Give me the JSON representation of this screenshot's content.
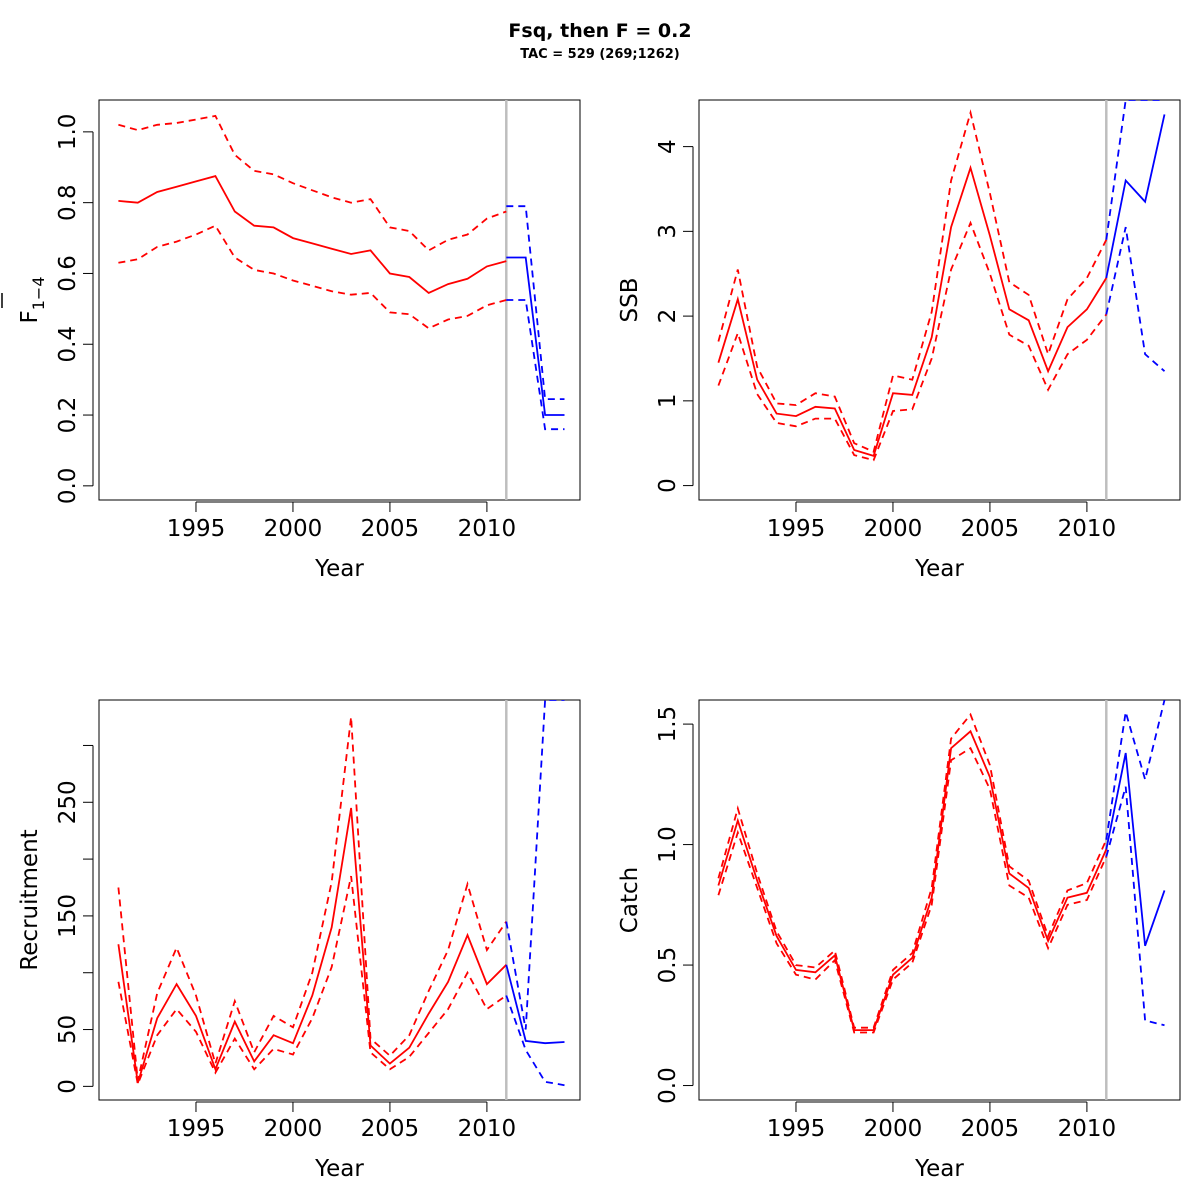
{
  "figure": {
    "title": "Fsq, then F = 0.2",
    "subtitle": "TAC = 529 (269;1262)"
  },
  "colors": {
    "historic": "#ff0000",
    "forecast": "#0000ff",
    "divider": "#bebebe",
    "axis": "#000000"
  },
  "chart_data": [
    {
      "id": "fbar",
      "type": "line",
      "xlabel": "Year",
      "ylabel": "F",
      "ylabel_subscript": "1−4",
      "ylabel_overbar": true,
      "xlim": [
        1990,
        2014.8
      ],
      "ylim": [
        -0.04,
        1.09
      ],
      "xticks": [
        1995,
        2000,
        2005,
        2010
      ],
      "yticks": [
        0.0,
        0.2,
        0.4,
        0.6,
        0.8,
        1.0
      ],
      "ytick_labels": [
        "0.0",
        "0.2",
        "0.4",
        "0.6",
        "0.8",
        "1.0"
      ],
      "divider_x": 2011,
      "historic": {
        "x": [
          1991,
          1992,
          1993,
          1994,
          1995,
          1996,
          1997,
          1998,
          1999,
          2000,
          2001,
          2002,
          2003,
          2004,
          2005,
          2006,
          2007,
          2008,
          2009,
          2010,
          2011
        ],
        "mid": [
          0.805,
          0.8,
          0.83,
          0.845,
          0.86,
          0.875,
          0.775,
          0.735,
          0.73,
          0.7,
          0.685,
          0.67,
          0.655,
          0.665,
          0.6,
          0.59,
          0.545,
          0.57,
          0.585,
          0.62,
          0.635
        ],
        "upper": [
          1.02,
          1.005,
          1.02,
          1.025,
          1.035,
          1.045,
          0.935,
          0.89,
          0.88,
          0.855,
          0.835,
          0.815,
          0.8,
          0.81,
          0.73,
          0.72,
          0.665,
          0.695,
          0.71,
          0.755,
          0.775
        ],
        "lower": [
          0.63,
          0.64,
          0.675,
          0.69,
          0.71,
          0.735,
          0.645,
          0.61,
          0.6,
          0.58,
          0.565,
          0.55,
          0.54,
          0.545,
          0.49,
          0.485,
          0.445,
          0.47,
          0.48,
          0.51,
          0.525
        ]
      },
      "forecast": {
        "x": [
          2011,
          2012,
          2013,
          2014
        ],
        "mid": [
          0.645,
          0.645,
          0.2,
          0.2
        ],
        "upper": [
          0.79,
          0.79,
          0.245,
          0.245
        ],
        "lower": [
          0.525,
          0.525,
          0.16,
          0.16
        ]
      }
    },
    {
      "id": "ssb",
      "type": "line",
      "xlabel": "Year",
      "ylabel": "SSB",
      "xlim": [
        1990,
        2014.8
      ],
      "ylim": [
        -0.17,
        4.55
      ],
      "xticks": [
        1995,
        2000,
        2005,
        2010
      ],
      "yticks": [
        0,
        1,
        2,
        3,
        4
      ],
      "ytick_labels": [
        "0",
        "1",
        "2",
        "3",
        "4"
      ],
      "divider_x": 2011,
      "historic": {
        "x": [
          1991,
          1992,
          1993,
          1994,
          1995,
          1996,
          1997,
          1998,
          1999,
          2000,
          2001,
          2002,
          2003,
          2004,
          2005,
          2006,
          2007,
          2008,
          2009,
          2010,
          2011
        ],
        "mid": [
          1.45,
          2.2,
          1.25,
          0.85,
          0.82,
          0.93,
          0.91,
          0.42,
          0.35,
          1.09,
          1.07,
          1.75,
          3.05,
          3.75,
          2.95,
          2.08,
          1.95,
          1.35,
          1.87,
          2.08,
          2.45
        ],
        "upper": [
          1.7,
          2.55,
          1.4,
          0.97,
          0.95,
          1.09,
          1.05,
          0.5,
          0.4,
          1.3,
          1.25,
          2.05,
          3.6,
          4.4,
          3.45,
          2.4,
          2.25,
          1.55,
          2.2,
          2.45,
          2.9
        ],
        "lower": [
          1.18,
          1.8,
          1.08,
          0.74,
          0.7,
          0.79,
          0.79,
          0.36,
          0.3,
          0.88,
          0.9,
          1.5,
          2.55,
          3.1,
          2.5,
          1.78,
          1.65,
          1.13,
          1.55,
          1.72,
          2.02
        ]
      },
      "forecast": {
        "x": [
          2011,
          2012,
          2013,
          2014
        ],
        "mid": [
          2.45,
          3.6,
          3.35,
          4.38
        ],
        "upper": [
          2.9,
          4.55,
          4.55,
          4.55
        ],
        "lower": [
          2.02,
          3.05,
          1.55,
          1.35
        ]
      }
    },
    {
      "id": "recruitment",
      "type": "line",
      "xlabel": "Year",
      "ylabel": "Recruitment",
      "xlim": [
        1990,
        2014.8
      ],
      "ylim": [
        -12,
        340
      ],
      "xticks": [
        1995,
        2000,
        2005,
        2010
      ],
      "yticks": [
        0,
        50,
        100,
        150,
        200,
        250,
        300
      ],
      "ytick_labels": [
        "0",
        "50",
        "",
        "150",
        "",
        "250",
        ""
      ],
      "divider_x": 2011,
      "historic": {
        "x": [
          1991,
          1992,
          1993,
          1994,
          1995,
          1996,
          1997,
          1998,
          1999,
          2000,
          2001,
          2002,
          2003,
          2004,
          2005,
          2006,
          2007,
          2008,
          2009,
          2010,
          2011
        ],
        "mid": [
          125,
          3,
          60,
          90,
          62,
          15,
          57,
          22,
          45,
          38,
          80,
          140,
          245,
          36,
          20,
          34,
          64,
          92,
          133,
          90,
          107
        ],
        "upper": [
          175,
          5,
          82,
          122,
          80,
          20,
          75,
          30,
          62,
          52,
          100,
          180,
          325,
          42,
          27,
          45,
          84,
          120,
          178,
          120,
          145
        ],
        "lower": [
          92,
          2,
          45,
          68,
          48,
          12,
          42,
          15,
          33,
          28,
          60,
          105,
          185,
          30,
          15,
          26,
          47,
          68,
          100,
          68,
          80
        ]
      },
      "forecast": {
        "x": [
          2011,
          2012,
          2013,
          2014
        ],
        "mid": [
          107,
          40,
          38,
          39
        ],
        "upper": [
          145,
          50,
          340,
          340
        ],
        "lower": [
          80,
          32,
          4,
          1
        ]
      }
    },
    {
      "id": "catch",
      "type": "line",
      "xlabel": "Year",
      "ylabel": "Catch",
      "xlim": [
        1990,
        2014.8
      ],
      "ylim": [
        -0.06,
        1.6
      ],
      "xticks": [
        1995,
        2000,
        2005,
        2010
      ],
      "yticks": [
        0.0,
        0.5,
        1.0,
        1.5
      ],
      "ytick_labels": [
        "0.0",
        "0.5",
        "1.0",
        "1.5"
      ],
      "divider_x": 2011,
      "historic": {
        "x": [
          1991,
          1992,
          1993,
          1994,
          1995,
          1996,
          1997,
          1998,
          1999,
          2000,
          2001,
          2002,
          2003,
          2004,
          2005,
          2006,
          2007,
          2008,
          2009,
          2010,
          2011
        ],
        "mid": [
          0.83,
          1.1,
          0.85,
          0.62,
          0.48,
          0.47,
          0.54,
          0.23,
          0.23,
          0.46,
          0.53,
          0.78,
          1.4,
          1.47,
          1.28,
          0.88,
          0.82,
          0.6,
          0.78,
          0.8,
          0.98
        ],
        "upper": [
          0.86,
          1.15,
          0.88,
          0.64,
          0.5,
          0.49,
          0.56,
          0.24,
          0.24,
          0.48,
          0.55,
          0.82,
          1.44,
          1.54,
          1.33,
          0.91,
          0.85,
          0.62,
          0.81,
          0.84,
          1.02
        ],
        "lower": [
          0.79,
          1.05,
          0.82,
          0.59,
          0.46,
          0.44,
          0.52,
          0.22,
          0.22,
          0.44,
          0.51,
          0.75,
          1.35,
          1.4,
          1.23,
          0.83,
          0.78,
          0.57,
          0.75,
          0.77,
          0.95
        ]
      },
      "forecast": {
        "x": [
          2011,
          2012,
          2013,
          2014
        ],
        "mid": [
          0.98,
          1.38,
          0.58,
          0.81
        ],
        "upper": [
          1.02,
          1.55,
          1.27,
          1.6
        ],
        "lower": [
          0.95,
          1.24,
          0.27,
          0.25
        ]
      }
    }
  ]
}
